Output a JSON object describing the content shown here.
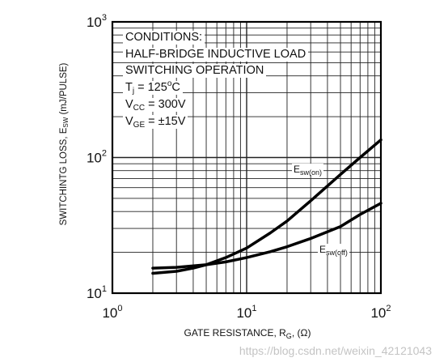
{
  "chart_data": {
    "type": "line",
    "x_scale": "log",
    "y_scale": "log",
    "xlim": [
      1,
      100
    ],
    "ylim": [
      10,
      1000
    ],
    "grid": true,
    "x_ticks": [
      {
        "base": "10",
        "exp": "0",
        "value": 1
      },
      {
        "base": "10",
        "exp": "1",
        "value": 10
      },
      {
        "base": "10",
        "exp": "2",
        "value": 100
      }
    ],
    "y_ticks": [
      {
        "base": "10",
        "exp": "1",
        "value": 10
      },
      {
        "base": "10",
        "exp": "2",
        "value": 100
      },
      {
        "base": "10",
        "exp": "3",
        "value": 1000
      }
    ],
    "xlabel": {
      "main": "GATE RESISTANCE, R",
      "sub": "G",
      "tail": ", (Ω)"
    },
    "ylabel": {
      "main": "SWITCHINTG LOSS, E",
      "sub": "SW",
      "tail": " (mJ/PULSE)"
    },
    "conditions": {
      "l1": "CONDITIONS:",
      "l2": "HALF-BRIDGE INDUCTIVE LOAD",
      "l3": "SWITCHING OPERATION",
      "tj_a": "T",
      "tj_sub": "j",
      "tj_b": " = 125",
      "tj_sup": "o",
      "tj_c": "C",
      "vcc_a": "V",
      "vcc_sub": "CC",
      "vcc_b": " = 300V",
      "vge_a": "V",
      "vge_sub": "GE",
      "vge_b": " = ±15V"
    },
    "series": [
      {
        "label_main": "E",
        "label_sub": "sw(on)",
        "x": [
          2,
          3,
          4,
          5,
          7,
          10,
          15,
          20,
          30,
          50,
          70,
          100
        ],
        "y": [
          14,
          14.5,
          15.3,
          16.2,
          18.3,
          21.5,
          27.8,
          34,
          48,
          75,
          100,
          135
        ]
      },
      {
        "label_main": "E",
        "label_sub": "sw(off)",
        "x": [
          2,
          3,
          5,
          7,
          10,
          15,
          20,
          30,
          50,
          70,
          100
        ],
        "y": [
          15.3,
          15.5,
          16.2,
          17,
          18.3,
          20.2,
          22,
          25.3,
          31,
          38,
          46
        ]
      }
    ]
  },
  "watermark": "https://blog.csdn.net/weixin_42121043"
}
